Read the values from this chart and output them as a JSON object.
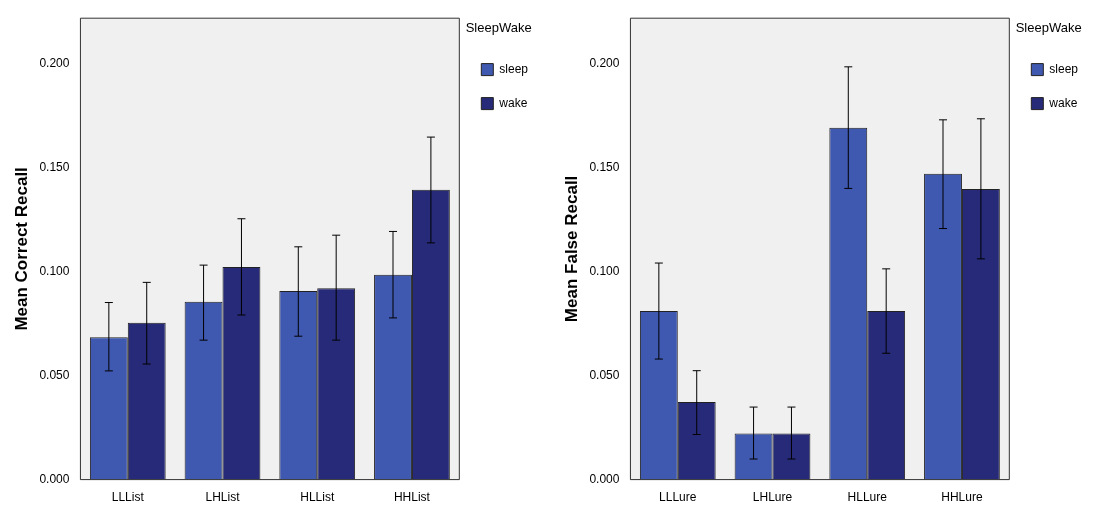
{
  "chart_data": [
    {
      "type": "bar",
      "ylabel": "Mean Correct Recall",
      "legend_title": "SleepWake",
      "legend": "top right",
      "grid": false,
      "categories": [
        "LLList",
        "LHList",
        "HLList",
        "HHList"
      ],
      "ylim": [
        0,
        0.222
      ],
      "yticks": [
        {
          "value": 0,
          "label": "0.000"
        },
        {
          "value": 0.05,
          "label": "0.050"
        },
        {
          "value": 0.1,
          "label": "0.100"
        },
        {
          "value": 0.15,
          "label": "0.150"
        },
        {
          "value": 0.2,
          "label": "0.200"
        }
      ],
      "series": [
        {
          "name": "sleep",
          "color": "#3f58b0",
          "values": [
            0.0685,
            0.0856,
            0.0907,
            0.0986
          ],
          "errors": [
            [
              0.0523,
              0.0852
            ],
            [
              0.0671,
              0.1032
            ],
            [
              0.069,
              0.112
            ],
            [
              0.0778,
              0.1194
            ]
          ]
        },
        {
          "name": "wake",
          "color": "#262a78",
          "values": [
            0.0755,
            0.1023,
            0.0921,
            0.1394
          ],
          "errors": [
            [
              0.0556,
              0.0949
            ],
            [
              0.0792,
              0.1255
            ],
            [
              0.0671,
              0.1176
            ],
            [
              0.1139,
              0.1648
            ]
          ]
        }
      ]
    },
    {
      "type": "bar",
      "ylabel": "Mean False Recall",
      "legend_title": "SleepWake",
      "legend": "top right",
      "grid": false,
      "categories": [
        "LLLure",
        "LHLure",
        "HLLure",
        "HHLure"
      ],
      "ylim": [
        0,
        0.222
      ],
      "yticks": [
        {
          "value": 0,
          "label": "0.000"
        },
        {
          "value": 0.05,
          "label": "0.050"
        },
        {
          "value": 0.1,
          "label": "0.100"
        },
        {
          "value": 0.15,
          "label": "0.150"
        },
        {
          "value": 0.2,
          "label": "0.200"
        }
      ],
      "series": [
        {
          "name": "sleep",
          "color": "#3f58b0",
          "values": [
            0.0811,
            0.0222,
            0.1693,
            0.1472
          ],
          "errors": [
            [
              0.058,
              0.1042
            ],
            [
              0.0099,
              0.0349
            ],
            [
              0.1401,
              0.1986
            ],
            [
              0.1208,
              0.1731
            ]
          ]
        },
        {
          "name": "wake",
          "color": "#262a78",
          "values": [
            0.0373,
            0.0222,
            0.0811,
            0.1398
          ],
          "errors": [
            [
              0.0217,
              0.0524
            ],
            [
              0.0099,
              0.0349
            ],
            [
              0.0608,
              0.1014
            ],
            [
              0.1062,
              0.1736
            ]
          ]
        }
      ]
    }
  ]
}
